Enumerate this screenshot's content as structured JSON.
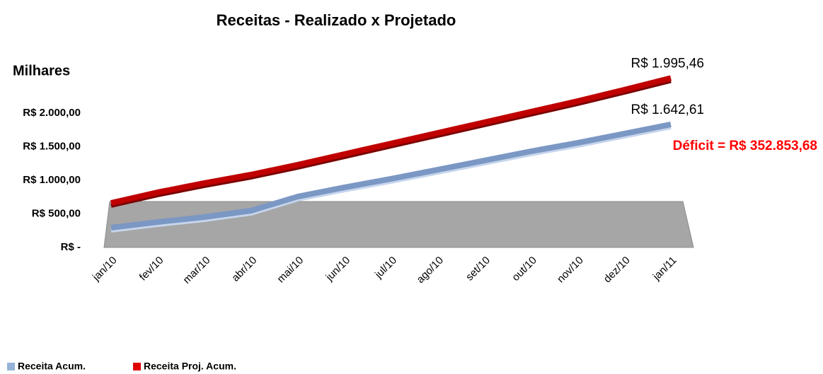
{
  "chart_data": {
    "type": "line",
    "title": "Receitas - Realizado x Projetado",
    "y_label": "Milhares",
    "categories": [
      "jan/10",
      "fev/10",
      "mar/10",
      "abr/10",
      "mai/10",
      "jun/10",
      "jul/10",
      "ago/10",
      "set/10",
      "out/10",
      "nov/10",
      "dez/10",
      "jan/11"
    ],
    "series": [
      {
        "name": "Receita Acum.",
        "color": "#7b97c4",
        "legend_color": "#95b3d7",
        "values": [
          105,
          189,
          263,
          358,
          568,
          705,
          832,
          968,
          1105,
          1242,
          1368,
          1505,
          1642.61
        ],
        "value_labels": [
          null,
          null,
          null,
          null,
          null,
          null,
          null,
          null,
          null,
          null,
          null,
          null,
          "R$ 1.642,61"
        ]
      },
      {
        "name": "Receita Proj. Acum.",
        "color": "#c00000",
        "legend_color": "#e00000",
        "values": [
          137,
          295,
          432,
          558,
          705,
          863,
          1021,
          1179,
          1337,
          1495,
          1653,
          1821,
          1995.46
        ],
        "value_labels": [
          null,
          null,
          null,
          null,
          null,
          null,
          null,
          null,
          null,
          null,
          null,
          null,
          "R$ 1.995,46"
        ]
      }
    ],
    "ylim": [
      0,
      2000
    ],
    "yticks": [
      {
        "value": 0,
        "label": "R$ -"
      },
      {
        "value": 500,
        "label": "R$ 500,00"
      },
      {
        "value": 1000,
        "label": "R$ 1.000,00"
      },
      {
        "value": 1500,
        "label": "R$ 1.500,00"
      },
      {
        "value": 2000,
        "label": "R$ 2.000,00"
      }
    ],
    "annotations": [
      {
        "text": "Déficit = R$ 352.853,68",
        "color": "#ff0000"
      }
    ],
    "grid": false,
    "legend": "bottom-left"
  }
}
